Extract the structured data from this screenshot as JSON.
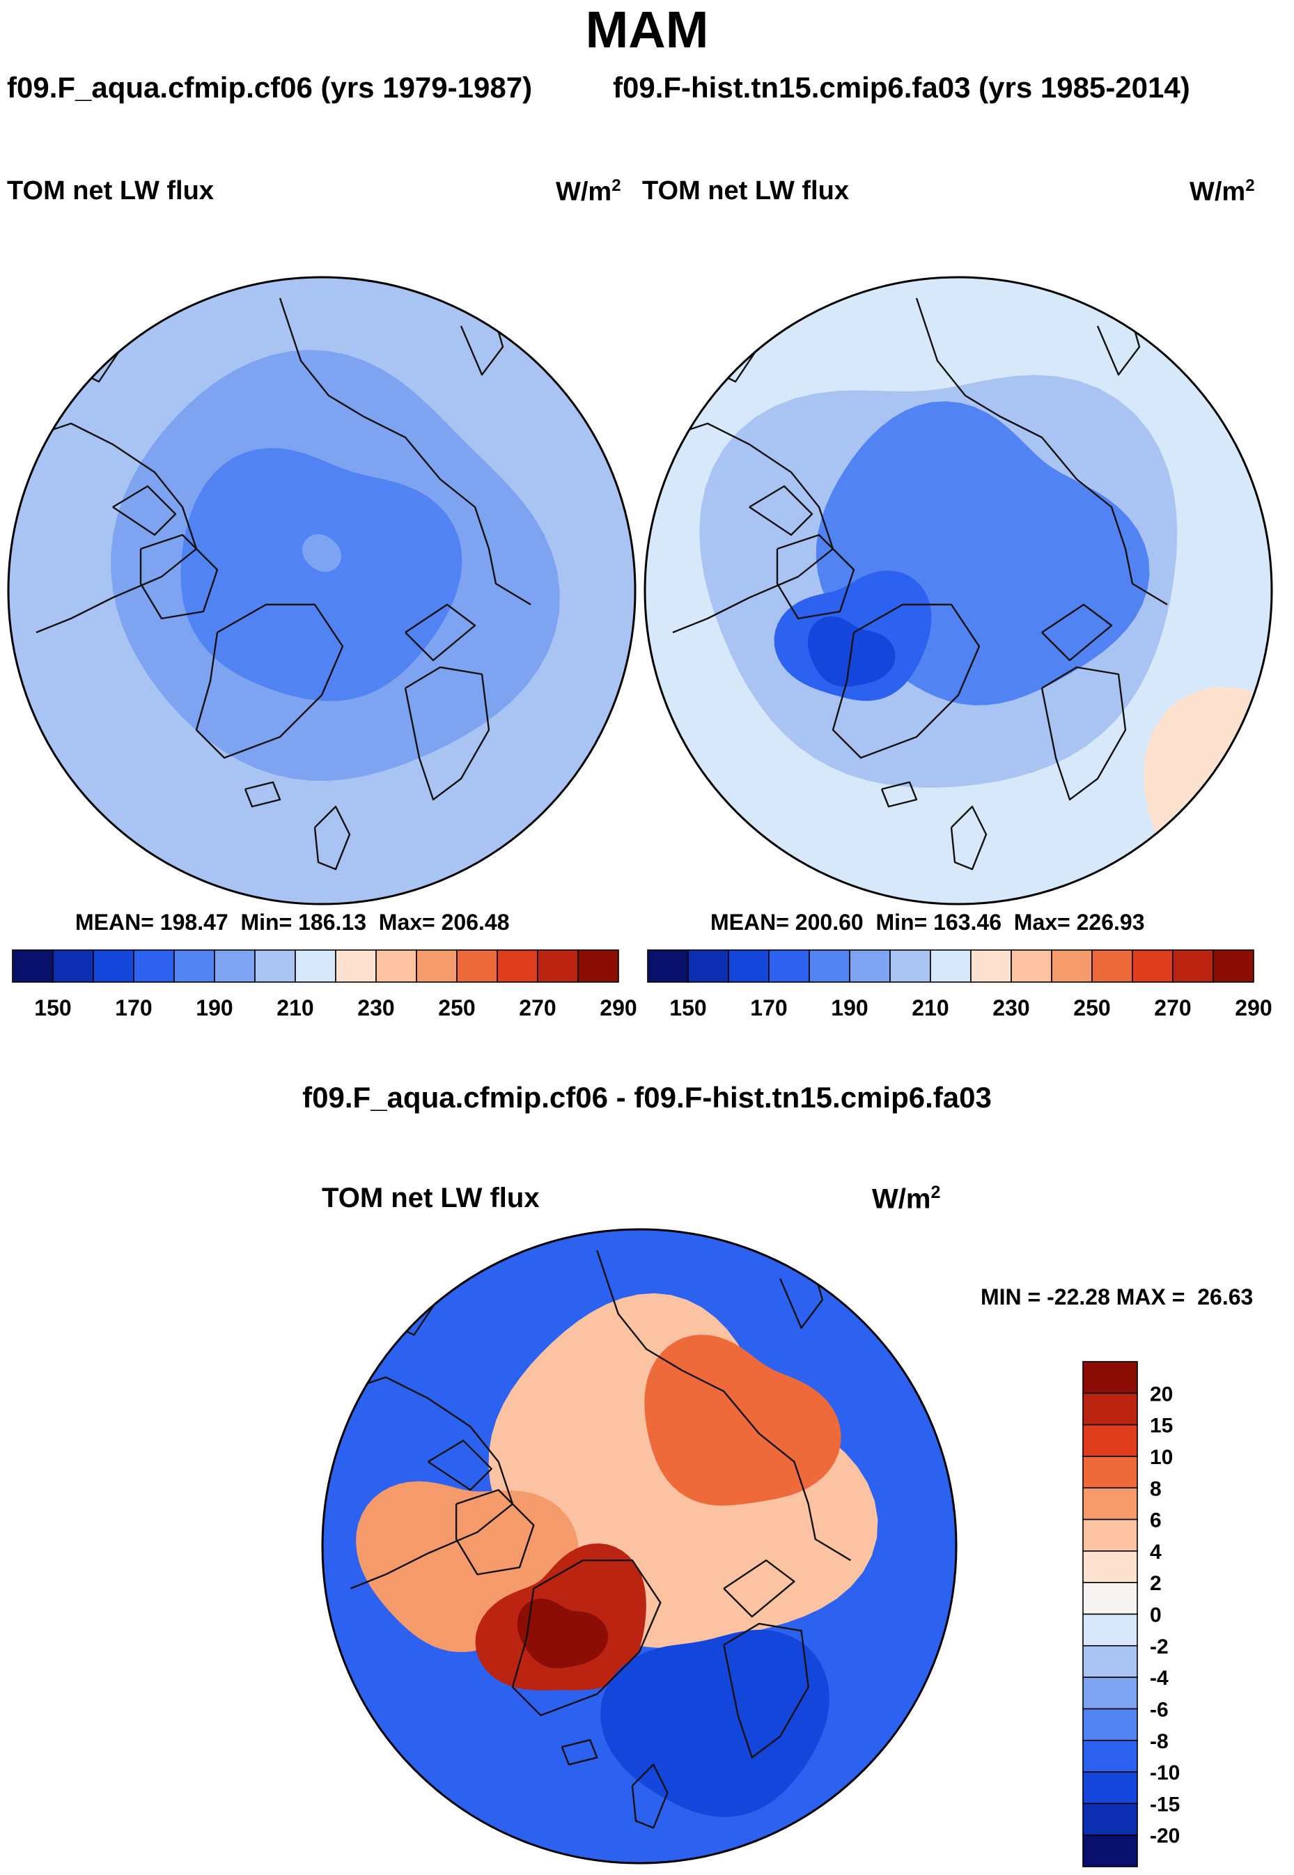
{
  "page_title": "MAM",
  "chart_data": [
    {
      "type": "heatmap",
      "projection": "north-polar-stereographic",
      "case_title": "f09.F_aqua.cfmip.cf06 (yrs 1979-1987)",
      "variable": "TOM net LW flux",
      "units": "W/m",
      "units_exp": "2",
      "stats": {
        "mean": "198.47",
        "min": "186.13",
        "max": "206.48"
      },
      "stats_text": "MEAN= 198.47  Min= 186.13  Max= 206.48",
      "colorbar": {
        "levels": [
          150,
          160,
          170,
          180,
          190,
          200,
          210,
          220,
          230,
          240,
          250,
          260,
          270,
          280,
          290
        ],
        "tick_labels": [
          "150",
          "170",
          "190",
          "210",
          "230",
          "250",
          "270",
          "290"
        ],
        "colors": [
          "#08106b",
          "#0b2fb0",
          "#1446dc",
          "#2d62f0",
          "#5283f2",
          "#7ea3f0",
          "#a9c3f2",
          "#d6e8fa",
          "#fde3cf",
          "#fbc3a1",
          "#f59a6b",
          "#ef6a3a",
          "#df3d1c",
          "#bb2410",
          "#8c0c06"
        ]
      },
      "regions": [
        {
          "label": "outer",
          "value": 205
        },
        {
          "label": "mid-ring",
          "value": 196
        },
        {
          "label": "arctic-core",
          "value": 188
        },
        {
          "label": "polar-spot",
          "value": 198
        }
      ]
    },
    {
      "type": "heatmap",
      "projection": "north-polar-stereographic",
      "case_title": "f09.F-hist.tn15.cmip6.fa03 (yrs 1985-2014)",
      "variable": "TOM net LW flux",
      "units": "W/m",
      "units_exp": "2",
      "stats": {
        "mean": "200.60",
        "min": "163.46",
        "max": "226.93"
      },
      "stats_text": "MEAN= 200.60  Min= 163.46  Max= 226.93",
      "colorbar": {
        "levels": [
          150,
          160,
          170,
          180,
          190,
          200,
          210,
          220,
          230,
          240,
          250,
          260,
          270,
          280,
          290
        ],
        "tick_labels": [
          "150",
          "170",
          "190",
          "210",
          "230",
          "250",
          "270",
          "290"
        ],
        "colors": [
          "#08106b",
          "#0b2fb0",
          "#1446dc",
          "#2d62f0",
          "#5283f2",
          "#7ea3f0",
          "#a9c3f2",
          "#d6e8fa",
          "#fde3cf",
          "#fbc3a1",
          "#f59a6b",
          "#ef6a3a",
          "#df3d1c",
          "#bb2410",
          "#8c0c06"
        ]
      },
      "regions": [
        {
          "label": "outer",
          "value": 215
        },
        {
          "label": "outer-east",
          "value": 222
        },
        {
          "label": "ring",
          "value": 205
        },
        {
          "label": "arctic-core",
          "value": 188
        },
        {
          "label": "greenland",
          "value": 178
        },
        {
          "label": "greenland-core",
          "value": 168
        }
      ]
    },
    {
      "type": "heatmap",
      "projection": "north-polar-stereographic",
      "diff_title": "f09.F_aqua.cfmip.cf06 - f09.F-hist.tn15.cmip6.fa03",
      "variable": "TOM net LW flux",
      "units": "W/m",
      "units_exp": "2",
      "stats": {
        "min": "-22.28",
        "max": "26.63"
      },
      "stats_text": "MIN = -22.28 MAX =  26.63",
      "colorbar": {
        "orientation": "vertical",
        "tick_labels": [
          "20",
          "15",
          "10",
          "8",
          "6",
          "4",
          "2",
          "0",
          "-2",
          "-4",
          "-6",
          "-8",
          "-10",
          "-15",
          "-20"
        ],
        "colors": [
          "#8c0c06",
          "#bb2410",
          "#df3d1c",
          "#ef6a3a",
          "#f59a6b",
          "#fbc3a1",
          "#fde3cf",
          "#f8f4f4",
          "#d6e8fa",
          "#a9c3f2",
          "#7ea3f0",
          "#5283f2",
          "#2d62f0",
          "#1446dc",
          "#0b2fb0",
          "#08106b"
        ]
      },
      "regions": [
        {
          "label": "subpolar-ocean",
          "value": -9
        },
        {
          "label": "arctic-ocean",
          "value": 5
        },
        {
          "label": "canada",
          "value": 7
        },
        {
          "label": "greenland",
          "value": 15
        },
        {
          "label": "greenland-core",
          "value": 22
        },
        {
          "label": "siberia",
          "value": 9
        },
        {
          "label": "north-atlantic",
          "value": -12
        }
      ]
    }
  ]
}
